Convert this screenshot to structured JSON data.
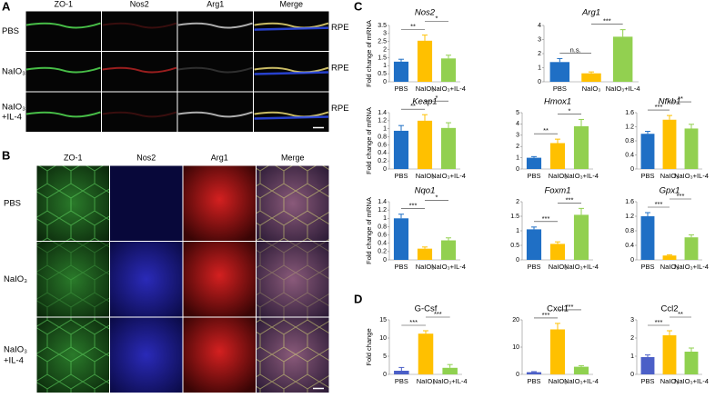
{
  "panels": {
    "A": {
      "label": "A",
      "columns": [
        "ZO-1",
        "Nos2",
        "Arg1",
        "Merge"
      ],
      "rows": [
        [
          "PBS"
        ],
        [
          "NaIO₃"
        ],
        [
          "NaIO₃",
          "+IL-4"
        ]
      ],
      "side_label": "RPE"
    },
    "B": {
      "label": "B",
      "columns": [
        "ZO-1",
        "Nos2",
        "Arg1",
        "Merge"
      ],
      "rows": [
        [
          "PBS"
        ],
        [
          "NaIO₃"
        ],
        [
          "NaIO₃",
          "+IL-4"
        ]
      ]
    },
    "C": {
      "label": "C"
    },
    "D": {
      "label": "D"
    }
  },
  "chart_data": [
    {
      "type": "bar",
      "title": "Nos2",
      "ylabel": "Fold change of mRNA",
      "categories": [
        "PBS",
        "NaIO₃",
        "NaIO₃+IL-4"
      ],
      "values": [
        1.25,
        2.55,
        1.45
      ],
      "errors": [
        0.15,
        0.35,
        0.2
      ],
      "colors": [
        "#1f6fc5",
        "#ffc000",
        "#92d050"
      ],
      "ylim": [
        0,
        3.5
      ],
      "yticks": [
        0,
        0.5,
        1,
        1.5,
        2,
        2.5,
        3,
        3.5
      ],
      "annotations": [
        {
          "text": "**",
          "from": 0,
          "to": 1
        },
        {
          "text": "*",
          "from": 1,
          "to": 2
        }
      ]
    },
    {
      "type": "bar",
      "title": "Arg1",
      "categories": [
        "PBS",
        "NaIO₃",
        "NaIO₃+IL-4"
      ],
      "values": [
        1.4,
        0.6,
        3.2
      ],
      "errors": [
        0.25,
        0.1,
        0.5
      ],
      "colors": [
        "#1f6fc5",
        "#ffc000",
        "#92d050"
      ],
      "ylim": [
        0,
        4
      ],
      "yticks": [
        0,
        1,
        2,
        3,
        4
      ],
      "annotations": [
        {
          "text": "n.s.",
          "from": 0,
          "to": 1
        },
        {
          "text": "***",
          "from": 1,
          "to": 2
        }
      ]
    },
    {
      "type": "bar",
      "title": "Keap1",
      "ylabel": "Fold change of mRNA",
      "categories": [
        "PBS",
        "NaIO₃",
        "NaIO₃+IL-4"
      ],
      "values": [
        0.95,
        1.2,
        1.02
      ],
      "errors": [
        0.13,
        0.15,
        0.13
      ],
      "colors": [
        "#1f6fc5",
        "#ffc000",
        "#92d050"
      ],
      "ylim": [
        0,
        1.4
      ],
      "yticks": [
        0,
        0.2,
        0.4,
        0.6,
        0.8,
        1,
        1.2,
        1.4
      ],
      "annotations": [
        {
          "text": "**",
          "from": 0,
          "to": 1
        },
        {
          "text": "*",
          "from": 1,
          "to": 2
        }
      ]
    },
    {
      "type": "bar",
      "title": "Hmox1",
      "categories": [
        "PBS",
        "NaIO₃",
        "NaIO₃+IL-4"
      ],
      "values": [
        1,
        2.3,
        3.8
      ],
      "errors": [
        0.1,
        0.35,
        0.6
      ],
      "colors": [
        "#1f6fc5",
        "#ffc000",
        "#92d050"
      ],
      "ylim": [
        0,
        5
      ],
      "yticks": [
        0,
        1,
        2,
        3,
        4,
        5
      ],
      "annotations": [
        {
          "text": "**",
          "from": 0,
          "to": 1
        },
        {
          "text": "*",
          "from": 1,
          "to": 2
        }
      ]
    },
    {
      "type": "bar",
      "title": "Nfkb1",
      "categories": [
        "PBS",
        "NaIO₃",
        "NaIO₃+IL-4"
      ],
      "values": [
        1,
        1.4,
        1.15
      ],
      "errors": [
        0.07,
        0.12,
        0.12
      ],
      "colors": [
        "#1f6fc5",
        "#ffc000",
        "#92d050"
      ],
      "ylim": [
        0,
        1.6
      ],
      "yticks": [
        0,
        0.4,
        0.8,
        1.2,
        1.6
      ],
      "annotations": [
        {
          "text": "***",
          "from": 0,
          "to": 1
        },
        {
          "text": "**",
          "from": 1,
          "to": 2
        }
      ]
    },
    {
      "type": "bar",
      "title": "Nqo1",
      "ylabel": "Fold change of mRNA",
      "categories": [
        "PBS",
        "NaIO₃",
        "NaIO₃+IL-4"
      ],
      "values": [
        1,
        0.27,
        0.47
      ],
      "errors": [
        0.1,
        0.04,
        0.06
      ],
      "colors": [
        "#1f6fc5",
        "#ffc000",
        "#92d050"
      ],
      "ylim": [
        0,
        1.4
      ],
      "yticks": [
        0,
        0.2,
        0.4,
        0.6,
        0.8,
        1,
        1.2,
        1.4
      ],
      "annotations": [
        {
          "text": "***",
          "from": 0,
          "to": 1
        },
        {
          "text": "*",
          "from": 1,
          "to": 2
        }
      ]
    },
    {
      "type": "bar",
      "title": "Foxm1",
      "categories": [
        "PBS",
        "NaIO₃",
        "NaIO₃+IL-4"
      ],
      "values": [
        1.05,
        0.55,
        1.55
      ],
      "errors": [
        0.08,
        0.07,
        0.22
      ],
      "colors": [
        "#1f6fc5",
        "#ffc000",
        "#92d050"
      ],
      "ylim": [
        0,
        2
      ],
      "yticks": [
        0,
        0.5,
        1,
        1.5,
        2
      ],
      "annotations": [
        {
          "text": "***",
          "from": 0,
          "to": 1
        },
        {
          "text": "***",
          "from": 1,
          "to": 2
        }
      ]
    },
    {
      "type": "bar",
      "title": "Gpx1",
      "categories": [
        "PBS",
        "NaIO₃",
        "NaIO₃+IL-4"
      ],
      "values": [
        1.2,
        0.12,
        0.62
      ],
      "errors": [
        0.1,
        0.02,
        0.07
      ],
      "colors": [
        "#1f6fc5",
        "#ffc000",
        "#92d050"
      ],
      "ylim": [
        0,
        1.6
      ],
      "yticks": [
        0,
        0.4,
        0.8,
        1.2,
        1.6
      ],
      "annotations": [
        {
          "text": "***",
          "from": 0,
          "to": 1
        },
        {
          "text": "***",
          "from": 1,
          "to": 2
        }
      ]
    },
    {
      "type": "bar",
      "title": "G-Csf",
      "ylabel": "Fold change",
      "categories": [
        "PBS",
        "NaIO₃",
        "NaIO₃+IL-4"
      ],
      "values": [
        1,
        11.2,
        1.8
      ],
      "errors": [
        0.9,
        0.8,
        0.9
      ],
      "colors": [
        "#4b5fc7",
        "#ffc000",
        "#8fd14f"
      ],
      "ylim": [
        0,
        15
      ],
      "yticks": [
        0,
        5,
        10,
        15
      ],
      "annotations": [
        {
          "text": "***",
          "from": 0,
          "to": 1
        },
        {
          "text": "***",
          "from": 1,
          "to": 2
        }
      ]
    },
    {
      "type": "bar",
      "title": "Cxcl1",
      "categories": [
        "PBS",
        "NaIO₃",
        "NaIO₃+IL-4"
      ],
      "values": [
        0.8,
        16.5,
        2.8
      ],
      "errors": [
        0.2,
        2.2,
        0.4
      ],
      "colors": [
        "#4b5fc7",
        "#ffc000",
        "#8fd14f"
      ],
      "ylim": [
        0,
        20
      ],
      "yticks": [
        0,
        10,
        20
      ],
      "annotations": [
        {
          "text": "***",
          "from": 0,
          "to": 1
        },
        {
          "text": "***",
          "from": 1,
          "to": 2
        }
      ]
    },
    {
      "type": "bar",
      "title": "Ccl2",
      "categories": [
        "PBS",
        "NaIO₃",
        "NaIO₃+IL-4"
      ],
      "values": [
        0.95,
        2.15,
        1.25
      ],
      "errors": [
        0.12,
        0.25,
        0.2
      ],
      "colors": [
        "#4b5fc7",
        "#ffc000",
        "#8fd14f"
      ],
      "ylim": [
        0,
        3
      ],
      "yticks": [
        0,
        1,
        2,
        3
      ],
      "annotations": [
        {
          "text": "***",
          "from": 0,
          "to": 1
        },
        {
          "text": "**",
          "from": 1,
          "to": 2
        }
      ]
    }
  ]
}
